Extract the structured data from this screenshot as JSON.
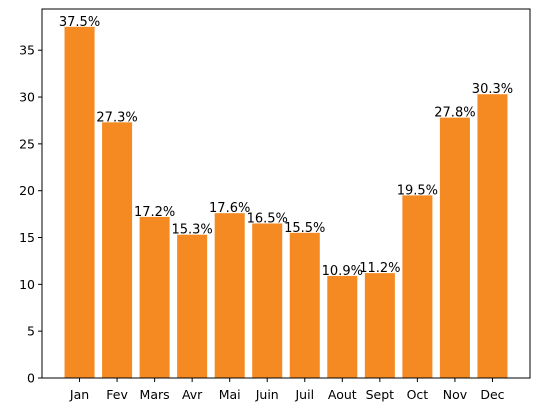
{
  "chart_data": {
    "type": "bar",
    "title": "",
    "xlabel": "",
    "ylabel": "",
    "categories": [
      "Jan",
      "Fev",
      "Mars",
      "Avr",
      "Mai",
      "Juin",
      "Juil",
      "Aout",
      "Sept",
      "Oct",
      "Nov",
      "Dec"
    ],
    "values": [
      37.5,
      27.3,
      17.2,
      15.3,
      17.6,
      16.5,
      15.5,
      10.9,
      11.2,
      19.5,
      27.8,
      30.3
    ],
    "data_labels": [
      "37.5%",
      "27.3%",
      "17.2%",
      "15.3%",
      "17.6%",
      "16.5%",
      "15.5%",
      "10.9%",
      "11.2%",
      "19.5%",
      "27.8%",
      "30.3%"
    ],
    "ylim": [
      0,
      39.4
    ],
    "yticks": [
      0,
      5,
      10,
      15,
      20,
      25,
      30,
      35
    ],
    "bar_color": "#f58a22",
    "grid": false,
    "legend": "none"
  }
}
